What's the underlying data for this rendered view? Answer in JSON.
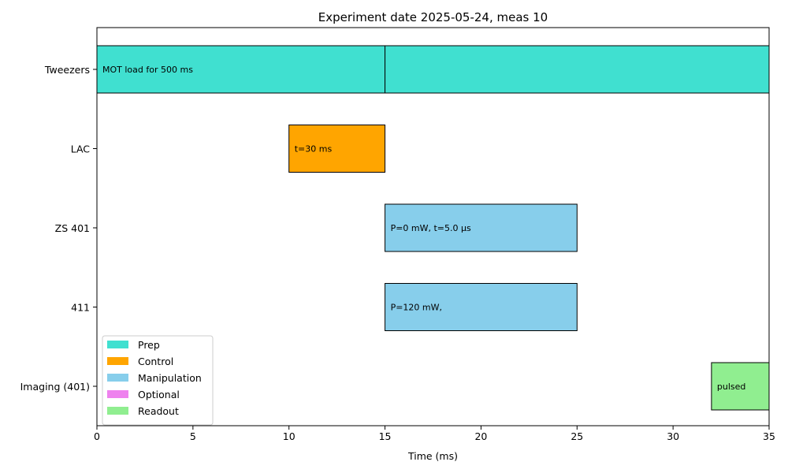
{
  "chart_data": {
    "type": "gantt",
    "title": "Experiment date 2025-05-24, meas 10",
    "xlabel": "Time (ms)",
    "ylabel": "",
    "xlim": [
      0,
      35
    ],
    "xticks": [
      0,
      5,
      10,
      15,
      20,
      25,
      30,
      35
    ],
    "rows": [
      "Tweezers",
      "LAC",
      "ZS 401",
      "411",
      "Imaging (401)"
    ],
    "bars": [
      {
        "row": "Tweezers",
        "start": 0,
        "end": 15,
        "category": "Prep",
        "label": "MOT load for 500 ms"
      },
      {
        "row": "Tweezers",
        "start": 15,
        "end": 35,
        "category": "Prep",
        "label": ""
      },
      {
        "row": "LAC",
        "start": 10,
        "end": 15,
        "category": "Control",
        "label": "t=30 ms"
      },
      {
        "row": "ZS 401",
        "start": 15,
        "end": 25,
        "category": "Manipulation",
        "label": "P=0 mW, t=5.0 µs"
      },
      {
        "row": "411",
        "start": 15,
        "end": 25,
        "category": "Manipulation",
        "label": "P=120 mW,"
      },
      {
        "row": "Imaging (401)",
        "start": 32,
        "end": 35,
        "category": "Readout",
        "label": "pulsed"
      }
    ],
    "legend": {
      "placement": "lower-left",
      "entries": [
        {
          "name": "Prep",
          "color": "#40e0d0"
        },
        {
          "name": "Control",
          "color": "#ffa500"
        },
        {
          "name": "Manipulation",
          "color": "#87ceeb"
        },
        {
          "name": "Optional",
          "color": "#ee82ee"
        },
        {
          "name": "Readout",
          "color": "#90ee90"
        }
      ]
    },
    "grid": false
  }
}
